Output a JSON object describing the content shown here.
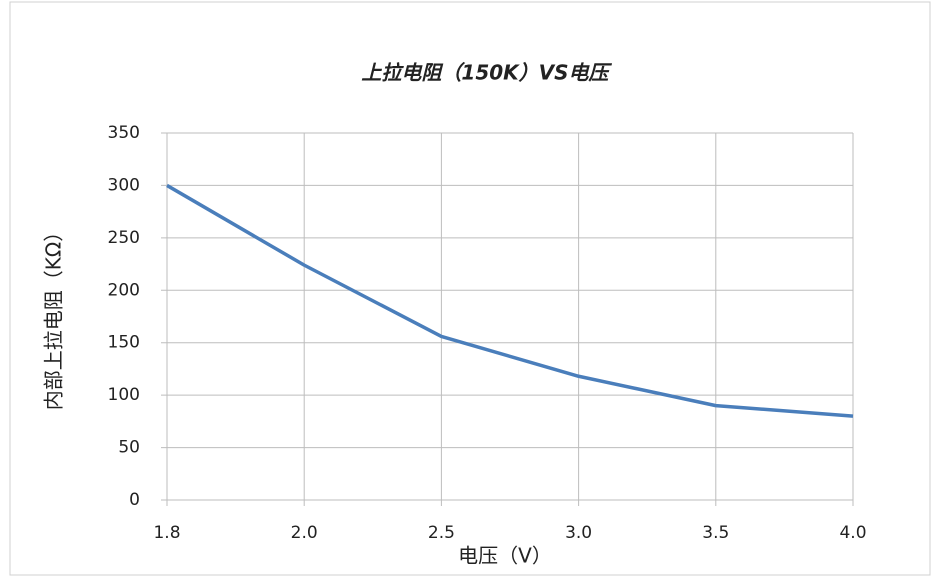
{
  "chart_data": {
    "type": "line",
    "title": "上拉电阻（150K）VS电压",
    "x_label": "电压（V）",
    "y_label": "内部上拉电阻（KΩ）",
    "categories": [
      "1.8",
      "2.0",
      "2.5",
      "3.0",
      "3.5",
      "4.0"
    ],
    "series": [
      {
        "name": "上拉电阻",
        "color": "#4a7ebb",
        "values": [
          300,
          224,
          156,
          118,
          90,
          80
        ]
      }
    ],
    "ylim": [
      0,
      350
    ],
    "yticks": [
      0,
      50,
      100,
      150,
      200,
      250,
      300,
      350
    ],
    "grid": true
  }
}
